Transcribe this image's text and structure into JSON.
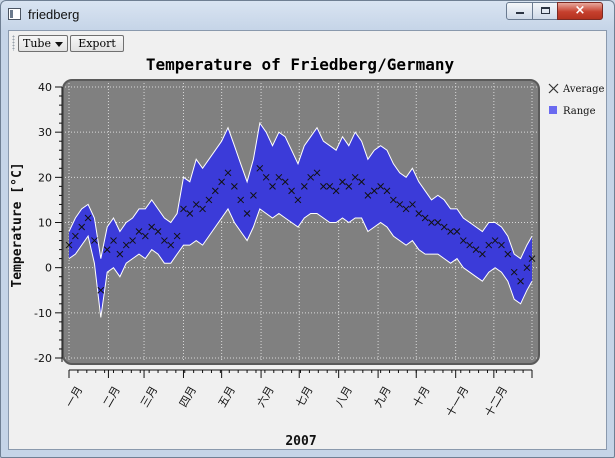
{
  "window": {
    "title": "friedberg",
    "close_glyph": "×"
  },
  "toolbar": {
    "curve_style": "Tube",
    "export_label": "Export"
  },
  "colors": {
    "canvas_bg": "#808080",
    "range_fill": "#3b3bd9",
    "range_outline": "#ffffff",
    "average_marker": "#111111",
    "grid": "#d9d9d9"
  },
  "chart_data": {
    "type": "area",
    "title": "Temperature of Friedberg/Germany",
    "xlabel": "2007",
    "ylabel": "Temperature [°C]",
    "xlim": [
      1,
      365
    ],
    "ylim": [
      -20,
      40
    ],
    "yticks": [
      -20,
      -10,
      0,
      10,
      20,
      30,
      40
    ],
    "months": [
      "一月",
      "二月",
      "三月",
      "四月",
      "五月",
      "六月",
      "七月",
      "八月",
      "九月",
      "十月",
      "十一月",
      "十二月"
    ],
    "legend_position": "right",
    "grid": true,
    "series": [
      {
        "name": "Average",
        "kind": "markers-x",
        "day": [
          1,
          6,
          11,
          16,
          21,
          26,
          31,
          36,
          41,
          46,
          51,
          56,
          61,
          66,
          71,
          76,
          81,
          86,
          91,
          96,
          101,
          106,
          111,
          116,
          121,
          126,
          131,
          136,
          141,
          146,
          151,
          156,
          161,
          166,
          171,
          176,
          181,
          186,
          191,
          196,
          201,
          206,
          211,
          216,
          221,
          226,
          231,
          236,
          241,
          246,
          251,
          256,
          261,
          266,
          271,
          276,
          281,
          286,
          291,
          296,
          301,
          306,
          311,
          316,
          321,
          326,
          331,
          336,
          341,
          346,
          351,
          356,
          361,
          365
        ],
        "values": [
          5,
          7,
          9,
          11,
          6,
          -5,
          4,
          6,
          3,
          5,
          6,
          8,
          7,
          9,
          8,
          6,
          5,
          7,
          13,
          12,
          14,
          13,
          15,
          17,
          19,
          21,
          18,
          15,
          12,
          16,
          22,
          20,
          18,
          20,
          19,
          17,
          15,
          18,
          20,
          21,
          18,
          18,
          17,
          19,
          18,
          20,
          19,
          16,
          17,
          18,
          17,
          15,
          14,
          13,
          14,
          12,
          11,
          10,
          10,
          9,
          8,
          8,
          6,
          5,
          4,
          3,
          5,
          6,
          5,
          3,
          -1,
          -3,
          0,
          2
        ]
      },
      {
        "name": "Range",
        "kind": "band",
        "day": [
          1,
          6,
          11,
          16,
          21,
          26,
          31,
          36,
          41,
          46,
          51,
          56,
          61,
          66,
          71,
          76,
          81,
          86,
          91,
          96,
          101,
          106,
          111,
          116,
          121,
          126,
          131,
          136,
          141,
          146,
          151,
          156,
          161,
          166,
          171,
          176,
          181,
          186,
          191,
          196,
          201,
          206,
          211,
          216,
          221,
          226,
          231,
          236,
          241,
          246,
          251,
          256,
          261,
          266,
          271,
          276,
          281,
          286,
          291,
          296,
          301,
          306,
          311,
          316,
          321,
          326,
          331,
          336,
          341,
          346,
          351,
          356,
          361,
          365
        ],
        "low": [
          2,
          3,
          5,
          7,
          1,
          -11,
          -1,
          0,
          -2,
          1,
          2,
          3,
          2,
          4,
          3,
          1,
          1,
          3,
          5,
          5,
          6,
          5,
          7,
          9,
          11,
          13,
          10,
          8,
          6,
          9,
          13,
          12,
          11,
          12,
          11,
          10,
          9,
          11,
          12,
          12,
          11,
          10,
          10,
          11,
          10,
          11,
          11,
          8,
          9,
          10,
          9,
          7,
          6,
          5,
          6,
          4,
          3,
          3,
          3,
          2,
          1,
          2,
          0,
          -1,
          -2,
          -3,
          -1,
          0,
          -1,
          -3,
          -7,
          -8,
          -5,
          -3
        ],
        "high": [
          8,
          11,
          13,
          14,
          11,
          2,
          9,
          11,
          8,
          10,
          11,
          13,
          13,
          15,
          13,
          11,
          10,
          12,
          20,
          19,
          24,
          22,
          24,
          26,
          28,
          31,
          27,
          23,
          19,
          24,
          32,
          30,
          27,
          30,
          29,
          26,
          23,
          27,
          29,
          31,
          28,
          27,
          26,
          29,
          27,
          30,
          28,
          24,
          26,
          27,
          26,
          23,
          21,
          20,
          22,
          19,
          17,
          15,
          16,
          15,
          13,
          13,
          11,
          10,
          9,
          8,
          10,
          10,
          9,
          7,
          3,
          2,
          5,
          7
        ]
      }
    ]
  }
}
